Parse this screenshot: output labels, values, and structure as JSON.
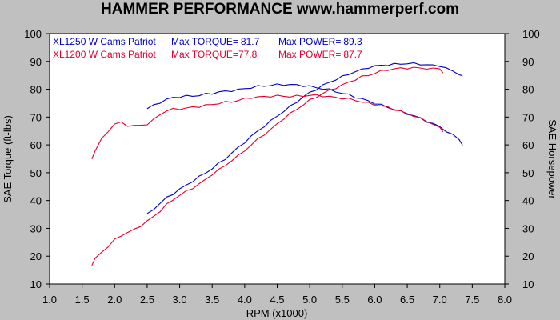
{
  "chart_data": {
    "type": "line",
    "title": "HAMMER PERFORMANCE www.hammerperf.com",
    "xlabel": "RPM (x1000)",
    "ylabel_left": "SAE Torque (ft-lbs)",
    "ylabel_right": "SAE Horsepower",
    "xlim": [
      1.0,
      8.0
    ],
    "ylim": [
      10,
      100
    ],
    "x_ticks": [
      "1.0",
      "1.5",
      "2.0",
      "2.5",
      "3.0",
      "3.5",
      "4.0",
      "4.5",
      "5.0",
      "5.5",
      "6.0",
      "6.5",
      "7.0",
      "7.5",
      "8.0"
    ],
    "y_ticks": [
      "10",
      "20",
      "30",
      "40",
      "50",
      "60",
      "70",
      "80",
      "90",
      "100"
    ],
    "grid": false,
    "series": [
      {
        "name": "XL1250 W Cams Patriot",
        "color": "#0000c0",
        "role": "torque",
        "x": [
          2.5,
          2.6,
          2.7,
          2.8,
          2.9,
          3.0,
          3.1,
          3.2,
          3.3,
          3.4,
          3.5,
          3.6,
          3.7,
          3.8,
          3.9,
          4.0,
          4.1,
          4.2,
          4.3,
          4.4,
          4.5,
          4.6,
          4.7,
          4.8,
          4.9,
          5.0,
          5.1,
          5.2,
          5.3,
          5.4,
          5.5,
          5.6,
          5.7,
          5.8,
          5.9,
          6.0,
          6.1,
          6.2,
          6.3,
          6.4,
          6.5,
          6.6,
          6.7,
          6.8,
          6.9,
          7.0,
          7.1,
          7.2,
          7.3,
          7.35
        ],
        "values": [
          73.0,
          74.2,
          75.3,
          76.3,
          77.0,
          77.3,
          77.5,
          77.6,
          77.8,
          78.2,
          78.5,
          79.0,
          79.2,
          79.5,
          79.8,
          80.2,
          80.6,
          81.0,
          81.2,
          81.4,
          81.6,
          81.7,
          81.6,
          81.5,
          81.3,
          81.0,
          80.6,
          80.2,
          79.8,
          79.2,
          78.5,
          78.0,
          77.2,
          76.5,
          75.8,
          75.0,
          74.3,
          73.5,
          72.8,
          72.0,
          71.2,
          70.5,
          69.5,
          68.5,
          67.5,
          66.5,
          65.0,
          63.5,
          62.0,
          60.0
        ]
      },
      {
        "name": "XL1250 W Cams Patriot",
        "color": "#0000c0",
        "role": "power",
        "x": [
          2.5,
          2.6,
          2.7,
          2.8,
          2.9,
          3.0,
          3.1,
          3.2,
          3.3,
          3.4,
          3.5,
          3.6,
          3.7,
          3.8,
          3.9,
          4.0,
          4.1,
          4.2,
          4.3,
          4.4,
          4.5,
          4.6,
          4.7,
          4.8,
          4.9,
          5.0,
          5.1,
          5.2,
          5.3,
          5.4,
          5.5,
          5.6,
          5.7,
          5.8,
          5.9,
          6.0,
          6.1,
          6.2,
          6.3,
          6.4,
          6.5,
          6.6,
          6.7,
          6.8,
          6.9,
          7.0,
          7.1,
          7.2,
          7.3,
          7.35
        ],
        "values": [
          35.0,
          37.0,
          39.0,
          41.0,
          42.5,
          44.0,
          45.5,
          47.0,
          48.5,
          50.0,
          51.5,
          53.3,
          55.0,
          57.0,
          59.0,
          61.0,
          63.0,
          65.0,
          66.7,
          68.5,
          70.5,
          72.0,
          73.8,
          75.5,
          77.2,
          78.8,
          80.0,
          81.3,
          82.5,
          83.5,
          84.5,
          85.5,
          86.3,
          87.0,
          87.8,
          88.3,
          88.5,
          88.8,
          89.0,
          89.1,
          89.3,
          89.2,
          89.0,
          88.8,
          88.5,
          88.5,
          87.5,
          86.5,
          85.5,
          84.5
        ]
      },
      {
        "name": "XL1200 W Cams Patriot",
        "color": "#e00030",
        "role": "torque",
        "x": [
          1.65,
          1.7,
          1.8,
          1.9,
          2.0,
          2.1,
          2.2,
          2.3,
          2.4,
          2.5,
          2.6,
          2.7,
          2.8,
          2.9,
          3.0,
          3.1,
          3.2,
          3.3,
          3.4,
          3.5,
          3.6,
          3.7,
          3.8,
          3.9,
          4.0,
          4.1,
          4.2,
          4.3,
          4.4,
          4.5,
          4.6,
          4.7,
          4.8,
          4.9,
          5.0,
          5.1,
          5.2,
          5.3,
          5.4,
          5.5,
          5.6,
          5.7,
          5.8,
          5.9,
          6.0,
          6.1,
          6.2,
          6.3,
          6.4,
          6.5,
          6.6,
          6.7,
          6.8,
          6.9,
          7.0,
          7.05
        ],
        "values": [
          55.0,
          58.0,
          62.0,
          65.0,
          67.5,
          68.0,
          67.0,
          66.8,
          67.0,
          67.5,
          69.0,
          71.0,
          72.3,
          72.8,
          73.0,
          73.2,
          73.5,
          73.8,
          74.2,
          74.5,
          75.0,
          75.3,
          75.5,
          76.0,
          76.5,
          77.0,
          77.2,
          77.3,
          77.5,
          77.6,
          77.5,
          77.4,
          77.5,
          77.6,
          77.8,
          77.8,
          77.6,
          77.3,
          77.0,
          76.8,
          76.5,
          76.0,
          75.5,
          75.0,
          74.5,
          74.0,
          73.5,
          72.8,
          72.0,
          71.2,
          70.5,
          69.5,
          68.5,
          67.5,
          66.0,
          65.0
        ]
      },
      {
        "name": "XL1200 W Cams Patriot",
        "color": "#e00030",
        "role": "power",
        "x": [
          1.65,
          1.7,
          1.8,
          1.9,
          2.0,
          2.1,
          2.2,
          2.3,
          2.4,
          2.5,
          2.6,
          2.7,
          2.8,
          2.9,
          3.0,
          3.1,
          3.2,
          3.3,
          3.4,
          3.5,
          3.6,
          3.7,
          3.8,
          3.9,
          4.0,
          4.1,
          4.2,
          4.3,
          4.4,
          4.5,
          4.6,
          4.7,
          4.8,
          4.9,
          5.0,
          5.1,
          5.2,
          5.3,
          5.4,
          5.5,
          5.6,
          5.7,
          5.8,
          5.9,
          6.0,
          6.1,
          6.2,
          6.3,
          6.4,
          6.5,
          6.6,
          6.7,
          6.8,
          6.9,
          7.0,
          7.05
        ],
        "values": [
          17.0,
          19.0,
          21.5,
          23.5,
          25.8,
          27.5,
          28.5,
          29.5,
          31.0,
          32.5,
          34.3,
          36.3,
          38.5,
          40.3,
          42.0,
          43.2,
          44.5,
          46.0,
          47.5,
          49.5,
          51.0,
          52.5,
          54.5,
          56.0,
          58.0,
          60.0,
          62.0,
          63.8,
          65.5,
          67.5,
          69.5,
          71.2,
          72.8,
          74.5,
          76.0,
          77.2,
          78.5,
          79.5,
          80.5,
          81.5,
          82.5,
          83.5,
          84.5,
          85.0,
          85.8,
          86.5,
          87.0,
          87.3,
          87.5,
          87.6,
          87.7,
          87.6,
          87.5,
          87.3,
          87.5,
          86.0
        ]
      }
    ]
  },
  "legend": [
    {
      "color": "#0000c0",
      "name": "XL1250 W Cams Patriot",
      "torque_label": "Max TORQUE=",
      "torque_value": "81.7",
      "power_label": "Max POWER=",
      "power_value": "89.3"
    },
    {
      "color": "#e00030",
      "name": "XL1200 W Cams Patriot",
      "torque_label": "Max TORQUE=",
      "torque_value": "77.8",
      "power_label": "Max POWER=",
      "power_value": "87.7"
    }
  ]
}
